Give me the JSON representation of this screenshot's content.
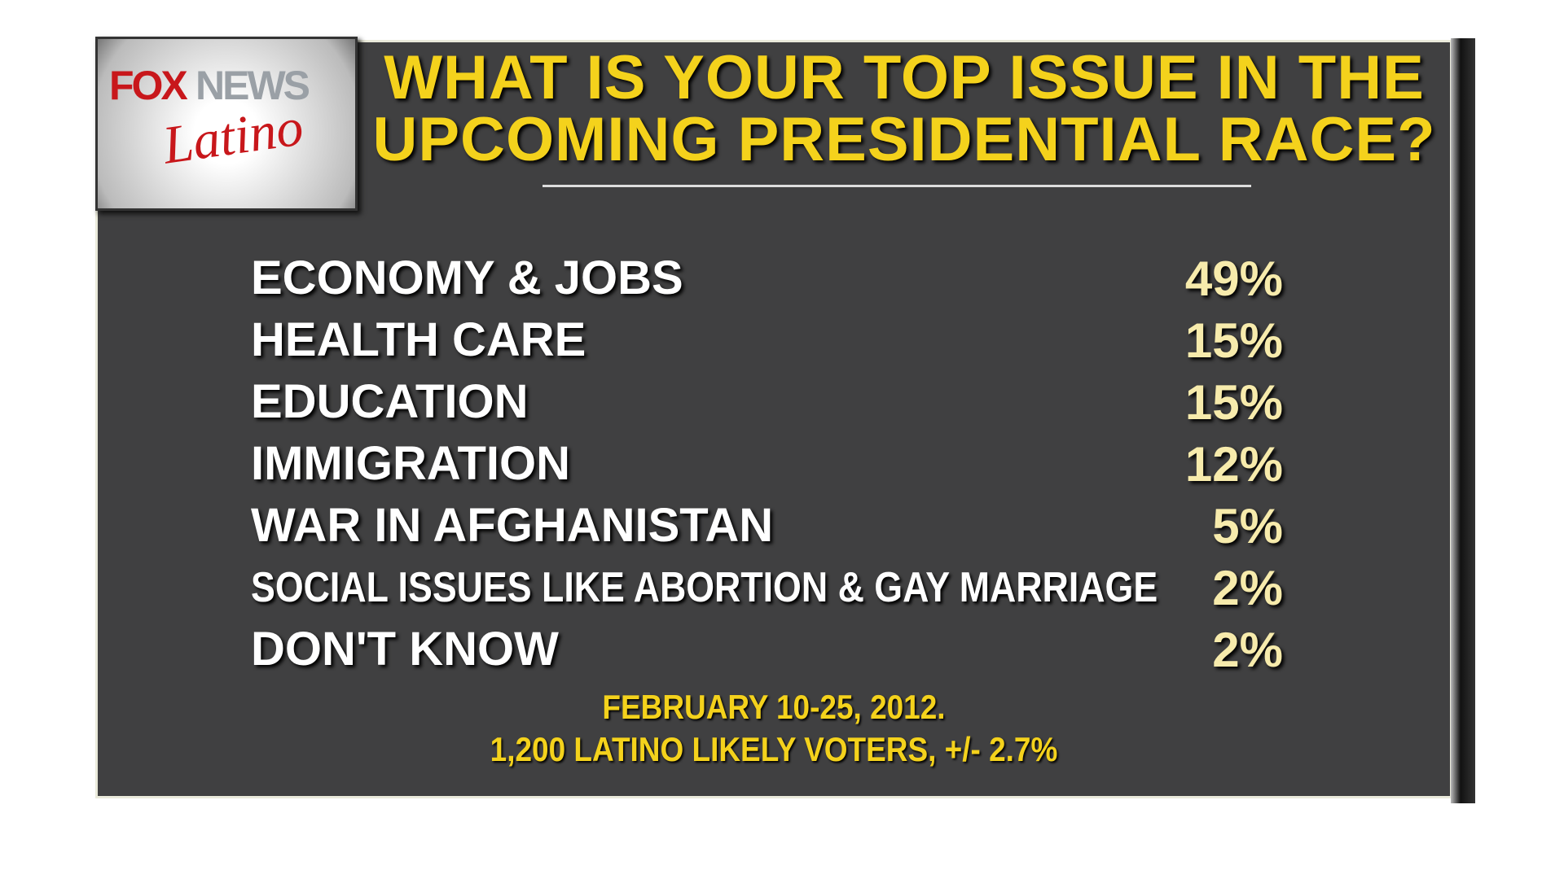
{
  "logo": {
    "brand_first": "FOX",
    "brand_second": "NEWS",
    "script": "Latino"
  },
  "header": {
    "title_line_1": "WHAT IS YOUR TOP ISSUE IN THE",
    "title_line_2": "UPCOMING PRESIDENTIAL RACE?"
  },
  "table": {
    "rows": [
      [
        "ECONOMY & JOBS",
        "49%"
      ],
      [
        "HEALTH CARE",
        "15%"
      ],
      [
        "EDUCATION",
        "15%"
      ],
      [
        "IMMIGRATION",
        "12%"
      ],
      [
        "WAR IN AFGHANISTAN",
        "5%"
      ],
      [
        "SOCIAL ISSUES LIKE ABORTION & GAY MARRIAGE",
        "2%"
      ],
      [
        "DON'T KNOW",
        "2%"
      ]
    ]
  },
  "footer": {
    "line_1": "FEBRUARY 10-25, 2012.",
    "line_2": "1,200 LATINO LIKELY VOTERS, +/- 2.7%"
  }
}
